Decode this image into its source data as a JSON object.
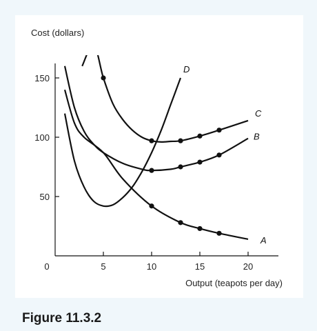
{
  "caption": "Figure 11.3.2",
  "chart_data": {
    "type": "line",
    "ylabel": "Cost (dollars)",
    "xlabel": "Output (teapots per day)",
    "xlim": [
      0,
      22
    ],
    "ylim": [
      0,
      160
    ],
    "x_ticks": [
      0,
      5,
      10,
      15,
      20
    ],
    "y_ticks": [
      50,
      100,
      150
    ],
    "grid": false,
    "legend": "none",
    "series": [
      {
        "name": "A",
        "x": [
          1,
          2,
          3,
          5,
          7,
          10,
          13,
          15,
          17,
          20
        ],
        "y": [
          140,
          112,
          100,
          87,
          65,
          42,
          28,
          23,
          19,
          14
        ],
        "points": [
          [
            10,
            42
          ],
          [
            13,
            28
          ],
          [
            15,
            23
          ],
          [
            17,
            19
          ]
        ]
      },
      {
        "name": "B",
        "x": [
          1,
          2,
          3,
          4,
          5,
          7,
          9,
          10,
          12,
          13,
          15,
          17,
          20
        ],
        "y": [
          160,
          125,
          105,
          94,
          87,
          78,
          73,
          72,
          73,
          75,
          79,
          85,
          99
        ],
        "points": [
          [
            10,
            72
          ],
          [
            13,
            75
          ],
          [
            15,
            79
          ],
          [
            17,
            85
          ]
        ]
      },
      {
        "name": "C",
        "x": [
          2.8,
          4,
          5,
          6,
          7,
          8,
          9,
          10,
          11,
          12,
          13,
          15,
          17,
          20
        ],
        "y": [
          160,
          178,
          150,
          128,
          115,
          106,
          100,
          97,
          96,
          96.5,
          97,
          101,
          106,
          114
        ],
        "points": [
          [
            5,
            150
          ],
          [
            10,
            97
          ],
          [
            13,
            97
          ],
          [
            15,
            101
          ],
          [
            17,
            106
          ]
        ]
      },
      {
        "name": "D",
        "x": [
          1,
          2,
          3,
          4,
          5,
          6,
          7,
          8,
          9,
          10,
          11,
          12,
          13
        ],
        "y": [
          120,
          80,
          58,
          46,
          42,
          43,
          49,
          58,
          71,
          87,
          106,
          128,
          150
        ]
      }
    ]
  }
}
